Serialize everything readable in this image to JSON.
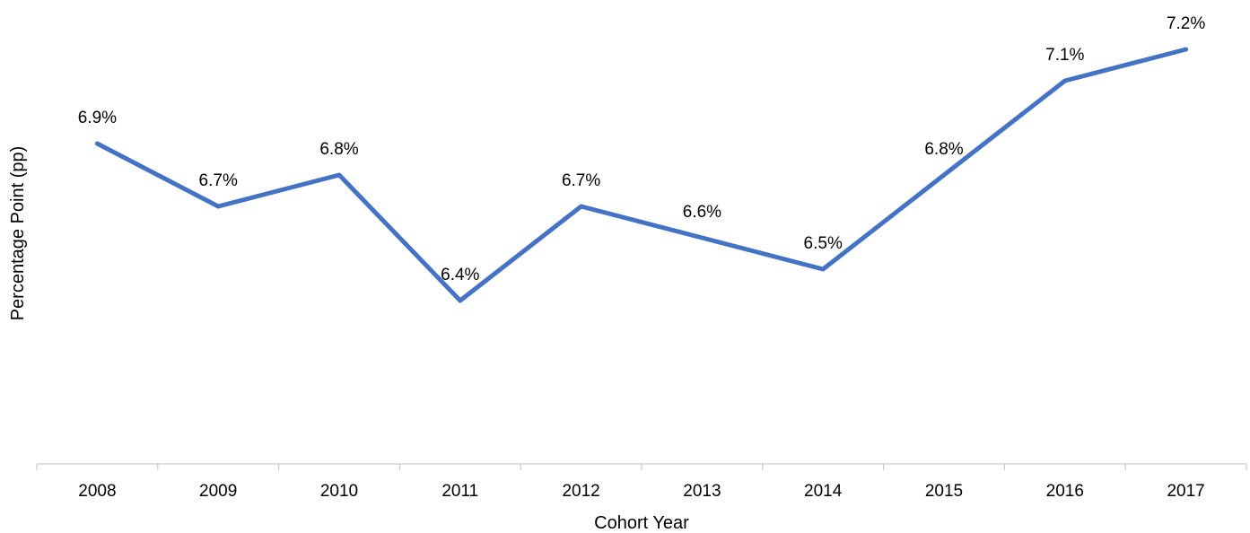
{
  "chart_data": {
    "type": "line",
    "title": "",
    "xlabel": "Cohort Year",
    "ylabel": "Percentage Point (pp)",
    "categories": [
      "2008",
      "2009",
      "2010",
      "2011",
      "2012",
      "2013",
      "2014",
      "2015",
      "2016",
      "2017"
    ],
    "series": [
      {
        "values": [
          6.9,
          6.7,
          6.8,
          6.4,
          6.7,
          6.6,
          6.5,
          6.8,
          7.1,
          7.2
        ],
        "labels": [
          "6.9%",
          "6.7%",
          "6.8%",
          "6.4%",
          "6.7%",
          "6.6%",
          "6.5%",
          "6.8%",
          "7.1%",
          "7.2%"
        ],
        "color": "#4472c4"
      }
    ],
    "ylim": [
      6.0,
      7.3
    ],
    "grid": false,
    "legend": "none",
    "y_tick_labels": false
  }
}
